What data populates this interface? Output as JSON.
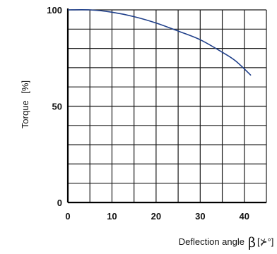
{
  "chart_data": {
    "type": "line",
    "title": "",
    "xlabel": "Deflection angle",
    "xlabel_symbol": "β",
    "xlabel_unit": "[⊁°]",
    "ylabel": "Torque",
    "ylabel_unit": "[%]",
    "xlim": [
      0,
      45
    ],
    "ylim": [
      0,
      100
    ],
    "x_ticks": [
      0,
      10,
      20,
      30,
      40
    ],
    "x_tick_labels": [
      "0",
      "10",
      "20",
      "30",
      "40"
    ],
    "y_ticks": [
      0,
      50,
      100
    ],
    "y_tick_labels": [
      "0",
      "50",
      "100"
    ],
    "grid": true,
    "x_grid_step": 5,
    "y_grid_step": 10,
    "line_color": "#1f3f8a",
    "series": [
      {
        "x": [
          0,
          5,
          10,
          15,
          20,
          25,
          30,
          35,
          38,
          41.5
        ],
        "values": [
          100,
          100,
          98.8,
          96.5,
          93.2,
          89,
          84.5,
          78,
          73.5,
          66
        ]
      }
    ]
  }
}
